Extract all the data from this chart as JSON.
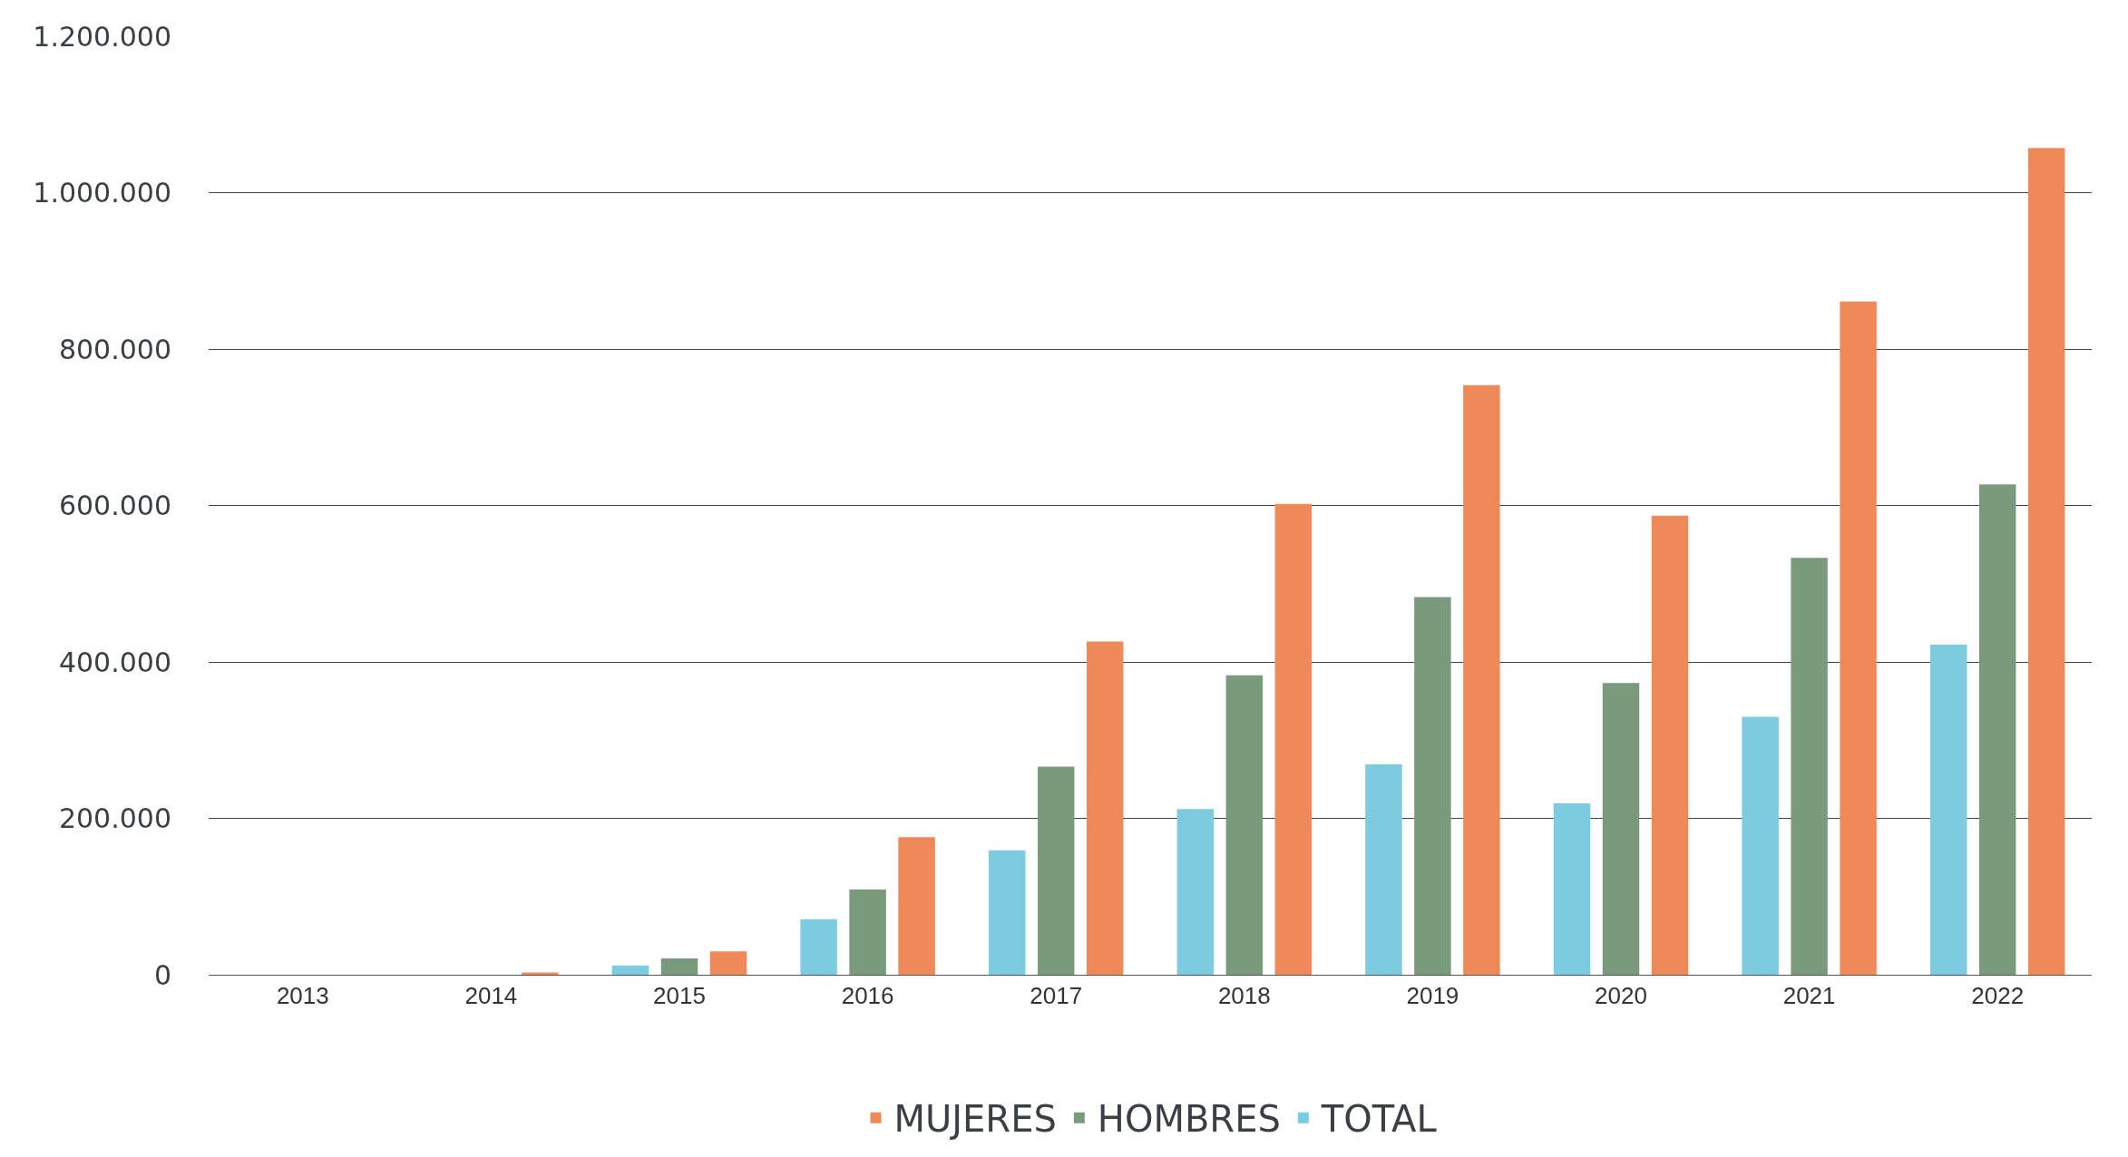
{
  "chart_data": {
    "type": "bar",
    "categories": [
      "2013",
      "2014",
      "2015",
      "2016",
      "2017",
      "2018",
      "2019",
      "2020",
      "2021",
      "2022"
    ],
    "series": [
      {
        "name": "TOTAL",
        "color": "#7ccbe0",
        "values": [
          0,
          0,
          12000,
          71000,
          159000,
          212000,
          269000,
          219000,
          330000,
          422000
        ]
      },
      {
        "name": "HOMBRES",
        "color": "#7a9a7e",
        "values": [
          0,
          0,
          21000,
          109000,
          266000,
          383000,
          483000,
          373000,
          533000,
          627000
        ]
      },
      {
        "name": "MUJERES",
        "color": "#f0895a",
        "values": [
          0,
          3000,
          30000,
          176000,
          426000,
          602000,
          754000,
          587000,
          861000,
          1057000
        ]
      }
    ],
    "ylim": [
      0,
      1200000
    ],
    "yticks": [
      {
        "value": 0,
        "label": "0"
      },
      {
        "value": 200000,
        "label": "200.000"
      },
      {
        "value": 400000,
        "label": "400.000"
      },
      {
        "value": 600000,
        "label": "600.000"
      },
      {
        "value": 800000,
        "label": "800.000"
      },
      {
        "value": 1000000,
        "label": "1.000.000"
      },
      {
        "value": 1200000,
        "label": "1.200.000"
      }
    ],
    "grid": "y",
    "legend": "bottom"
  }
}
